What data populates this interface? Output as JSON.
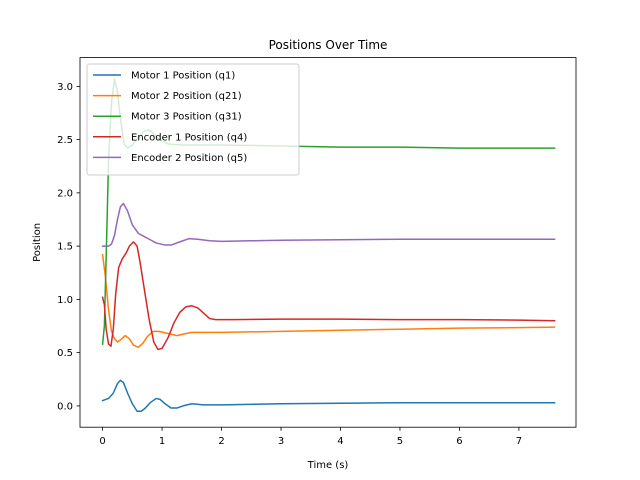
{
  "chart_data": {
    "type": "line",
    "title": "Positions Over Time",
    "xlabel": "Time (s)",
    "ylabel": "Position",
    "xlim": [
      -0.38,
      7.96
    ],
    "ylim": [
      -0.2,
      3.27
    ],
    "xticks": [
      0,
      1,
      2,
      3,
      4,
      5,
      6,
      7
    ],
    "yticks": [
      0.0,
      0.5,
      1.0,
      1.5,
      2.0,
      2.5,
      3.0
    ],
    "xtick_labels": [
      "0",
      "1",
      "2",
      "3",
      "4",
      "5",
      "6",
      "7"
    ],
    "ytick_labels": [
      "0.0",
      "0.5",
      "1.0",
      "1.5",
      "2.0",
      "2.5",
      "3.0"
    ],
    "legend_position": "top-left",
    "grid": false,
    "series": [
      {
        "name": "Motor 1 Position (q1)",
        "color": "#1f77b4",
        "points": [
          [
            0.0,
            0.05
          ],
          [
            0.1,
            0.07
          ],
          [
            0.18,
            0.12
          ],
          [
            0.25,
            0.21
          ],
          [
            0.3,
            0.24
          ],
          [
            0.35,
            0.22
          ],
          [
            0.42,
            0.12
          ],
          [
            0.5,
            0.02
          ],
          [
            0.58,
            -0.05
          ],
          [
            0.65,
            -0.05
          ],
          [
            0.72,
            -0.02
          ],
          [
            0.8,
            0.03
          ],
          [
            0.9,
            0.07
          ],
          [
            0.97,
            0.06
          ],
          [
            1.05,
            0.02
          ],
          [
            1.15,
            -0.02
          ],
          [
            1.25,
            -0.02
          ],
          [
            1.35,
            0.0
          ],
          [
            1.5,
            0.02
          ],
          [
            1.7,
            0.01
          ],
          [
            2.0,
            0.01
          ],
          [
            3.0,
            0.02
          ],
          [
            4.0,
            0.025
          ],
          [
            5.0,
            0.03
          ],
          [
            6.0,
            0.03
          ],
          [
            7.0,
            0.03
          ],
          [
            7.6,
            0.03
          ]
        ]
      },
      {
        "name": "Motor 2 Position (q21)",
        "color": "#ff7f0e",
        "points": [
          [
            0.0,
            1.42
          ],
          [
            0.05,
            1.2
          ],
          [
            0.1,
            0.9
          ],
          [
            0.15,
            0.7
          ],
          [
            0.2,
            0.63
          ],
          [
            0.25,
            0.6
          ],
          [
            0.3,
            0.62
          ],
          [
            0.38,
            0.66
          ],
          [
            0.45,
            0.63
          ],
          [
            0.52,
            0.57
          ],
          [
            0.6,
            0.55
          ],
          [
            0.68,
            0.59
          ],
          [
            0.75,
            0.65
          ],
          [
            0.85,
            0.7
          ],
          [
            0.95,
            0.7
          ],
          [
            1.1,
            0.68
          ],
          [
            1.25,
            0.66
          ],
          [
            1.4,
            0.68
          ],
          [
            1.5,
            0.69
          ],
          [
            2.0,
            0.69
          ],
          [
            3.0,
            0.7
          ],
          [
            4.0,
            0.71
          ],
          [
            5.0,
            0.72
          ],
          [
            6.0,
            0.73
          ],
          [
            7.0,
            0.735
          ],
          [
            7.6,
            0.74
          ]
        ]
      },
      {
        "name": "Motor 3 Position (q31)",
        "color": "#2ca02c",
        "points": [
          [
            0.0,
            0.58
          ],
          [
            0.03,
            0.75
          ],
          [
            0.06,
            1.4
          ],
          [
            0.1,
            2.3
          ],
          [
            0.15,
            2.85
          ],
          [
            0.2,
            3.07
          ],
          [
            0.25,
            2.95
          ],
          [
            0.3,
            2.7
          ],
          [
            0.36,
            2.46
          ],
          [
            0.42,
            2.42
          ],
          [
            0.5,
            2.45
          ],
          [
            0.6,
            2.52
          ],
          [
            0.7,
            2.58
          ],
          [
            0.78,
            2.59
          ],
          [
            0.85,
            2.56
          ],
          [
            0.95,
            2.5
          ],
          [
            1.1,
            2.46
          ],
          [
            1.3,
            2.45
          ],
          [
            1.6,
            2.45
          ],
          [
            2.0,
            2.45
          ],
          [
            3.0,
            2.44
          ],
          [
            4.0,
            2.43
          ],
          [
            5.0,
            2.43
          ],
          [
            6.0,
            2.42
          ],
          [
            7.0,
            2.42
          ],
          [
            7.6,
            2.42
          ]
        ]
      },
      {
        "name": "Encoder 1 Position (q4)",
        "color": "#d62728",
        "points": [
          [
            0.0,
            1.02
          ],
          [
            0.03,
            0.95
          ],
          [
            0.06,
            0.72
          ],
          [
            0.1,
            0.58
          ],
          [
            0.14,
            0.56
          ],
          [
            0.18,
            0.72
          ],
          [
            0.22,
            1.05
          ],
          [
            0.27,
            1.3
          ],
          [
            0.33,
            1.38
          ],
          [
            0.4,
            1.44
          ],
          [
            0.45,
            1.5
          ],
          [
            0.52,
            1.54
          ],
          [
            0.58,
            1.5
          ],
          [
            0.63,
            1.35
          ],
          [
            0.7,
            1.1
          ],
          [
            0.78,
            0.82
          ],
          [
            0.86,
            0.6
          ],
          [
            0.93,
            0.53
          ],
          [
            1.0,
            0.54
          ],
          [
            1.1,
            0.64
          ],
          [
            1.2,
            0.78
          ],
          [
            1.3,
            0.88
          ],
          [
            1.4,
            0.93
          ],
          [
            1.5,
            0.94
          ],
          [
            1.6,
            0.92
          ],
          [
            1.7,
            0.87
          ],
          [
            1.8,
            0.82
          ],
          [
            1.9,
            0.81
          ],
          [
            2.2,
            0.81
          ],
          [
            3.0,
            0.815
          ],
          [
            4.0,
            0.815
          ],
          [
            5.0,
            0.81
          ],
          [
            6.0,
            0.81
          ],
          [
            7.0,
            0.805
          ],
          [
            7.6,
            0.8
          ]
        ]
      },
      {
        "name": "Encoder 2 Position (q5)",
        "color": "#9467bd",
        "points": [
          [
            0.0,
            1.5
          ],
          [
            0.1,
            1.5
          ],
          [
            0.15,
            1.52
          ],
          [
            0.2,
            1.6
          ],
          [
            0.25,
            1.75
          ],
          [
            0.3,
            1.87
          ],
          [
            0.35,
            1.9
          ],
          [
            0.42,
            1.83
          ],
          [
            0.5,
            1.7
          ],
          [
            0.6,
            1.62
          ],
          [
            0.7,
            1.59
          ],
          [
            0.8,
            1.56
          ],
          [
            0.9,
            1.53
          ],
          [
            1.05,
            1.51
          ],
          [
            1.15,
            1.51
          ],
          [
            1.3,
            1.54
          ],
          [
            1.45,
            1.57
          ],
          [
            1.6,
            1.565
          ],
          [
            1.8,
            1.55
          ],
          [
            2.0,
            1.545
          ],
          [
            2.5,
            1.55
          ],
          [
            3.0,
            1.555
          ],
          [
            4.0,
            1.56
          ],
          [
            5.0,
            1.565
          ],
          [
            6.0,
            1.565
          ],
          [
            7.0,
            1.565
          ],
          [
            7.6,
            1.565
          ]
        ]
      }
    ]
  }
}
